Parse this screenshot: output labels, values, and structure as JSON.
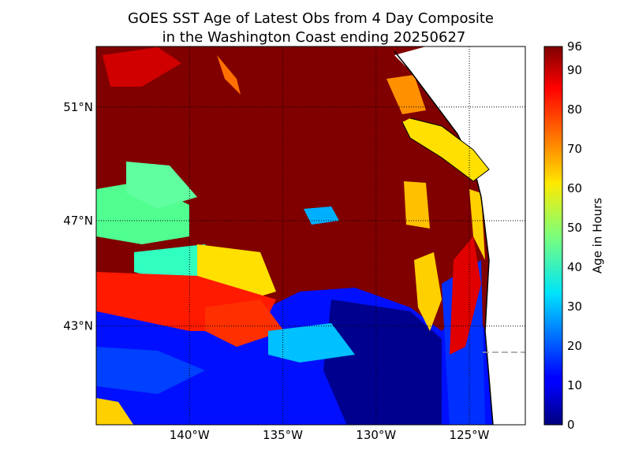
{
  "chart_data": {
    "type": "map",
    "title": [
      "GOES SST Age of Latest Obs from 4 Day Composite",
      "in the Washington Coast ending 20250627"
    ],
    "projection": "mercator",
    "xlim": [
      -145,
      -122
    ],
    "ylim": [
      39,
      53
    ],
    "xticks": [
      {
        "value": -140,
        "label": "140°W"
      },
      {
        "value": -135,
        "label": "135°W"
      },
      {
        "value": -130,
        "label": "130°W"
      },
      {
        "value": -125,
        "label": "125°W"
      }
    ],
    "yticks": [
      {
        "value": 43,
        "label": "43°N"
      },
      {
        "value": 47,
        "label": "47°N"
      },
      {
        "value": 51,
        "label": "51°N"
      }
    ],
    "grid": true,
    "colorbar": {
      "label": "Age in Hours",
      "colormap": "jet",
      "lim": [
        0,
        96
      ],
      "ticks": [
        0,
        10,
        20,
        30,
        40,
        50,
        60,
        70,
        80,
        90,
        96
      ]
    }
  }
}
